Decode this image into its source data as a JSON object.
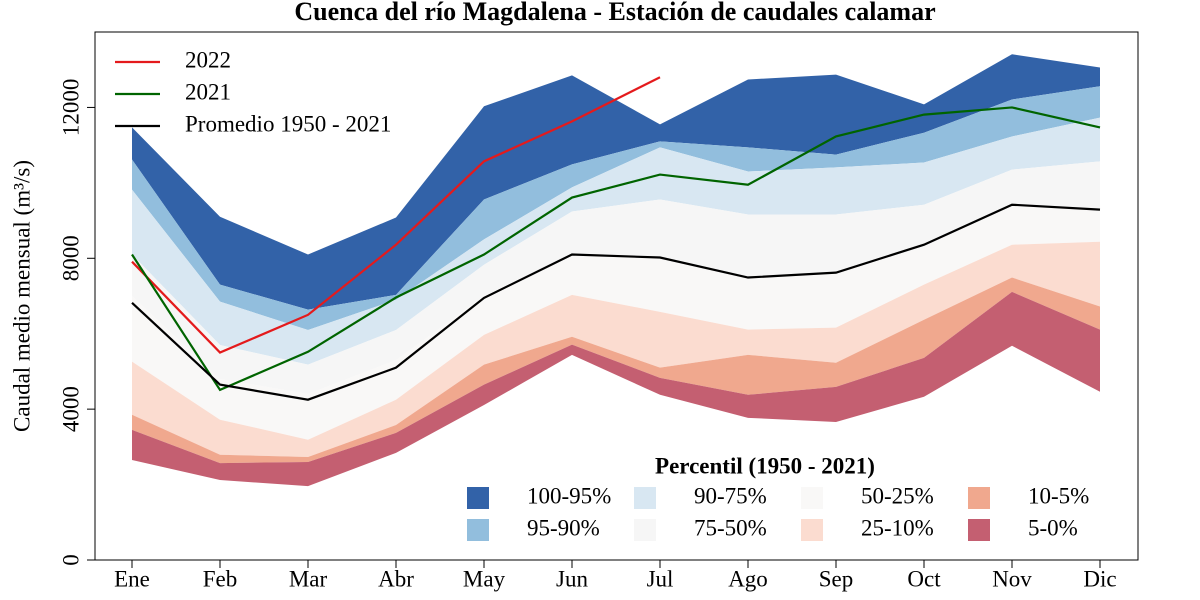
{
  "chart_data": {
    "type": "band",
    "title": "Cuenca del río Magdalena - Estación de caudales calamar",
    "y_label": "Caudal medio mensual (m³/s)",
    "legend_title": "Percentil (1950 - 2021)",
    "categories": [
      "Ene",
      "Feb",
      "Mar",
      "Abr",
      "May",
      "Jun",
      "Jul",
      "Ago",
      "Sep",
      "Oct",
      "Nov",
      "Dic"
    ],
    "ylim": [
      0,
      14000
    ],
    "yticks": [
      0,
      4000,
      8000,
      12000
    ],
    "bands": [
      {
        "name": "100-95%",
        "color": "#3262a8",
        "upper": [
          11470,
          9100,
          8100,
          9080,
          12030,
          12850,
          11550,
          12740,
          12870,
          12080,
          13410,
          13060
        ],
        "lower": [
          10620,
          7300,
          6640,
          7030,
          9560,
          10490,
          11100,
          10940,
          10750,
          11330,
          12210,
          12560
        ]
      },
      {
        "name": "95-90%",
        "color": "#92bedd",
        "upper": [
          10620,
          7300,
          6640,
          7030,
          9560,
          10490,
          11100,
          10940,
          10750,
          11330,
          12210,
          12560
        ],
        "lower": [
          9820,
          6850,
          6100,
          6900,
          8500,
          9880,
          10940,
          10300,
          10410,
          10540,
          11230,
          11730
        ]
      },
      {
        "name": "90-75%",
        "color": "#d8e7f2",
        "upper": [
          9820,
          6850,
          6100,
          6900,
          8500,
          9880,
          10940,
          10300,
          10410,
          10540,
          11230,
          11730
        ],
        "lower": [
          8100,
          5700,
          5180,
          6100,
          7830,
          9240,
          9560,
          9160,
          9160,
          9420,
          10350,
          10570
        ]
      },
      {
        "name": "75-50%",
        "color": "#f6f6f6",
        "upper": [
          8100,
          5700,
          5180,
          6100,
          7830,
          9240,
          9560,
          9160,
          9160,
          9420,
          10350,
          10570
        ],
        "lower": [
          7000,
          4800,
          4400,
          5300,
          7000,
          8100,
          8000,
          7500,
          7600,
          8300,
          9400,
          9300
        ]
      },
      {
        "name": "50-25%",
        "color": "#f9f8f7",
        "upper": [
          7000,
          4800,
          4400,
          5300,
          7000,
          8100,
          8000,
          7500,
          7600,
          8300,
          9400,
          9300
        ],
        "lower": [
          5260,
          3720,
          3190,
          4250,
          5970,
          7030,
          6580,
          6110,
          6160,
          7300,
          8360,
          8440
        ]
      },
      {
        "name": "25-10%",
        "color": "#fbdcd0",
        "upper": [
          5260,
          3720,
          3190,
          4250,
          5970,
          7030,
          6580,
          6110,
          6160,
          7300,
          8360,
          8440
        ],
        "lower": [
          3850,
          2790,
          2730,
          3580,
          5180,
          5920,
          5100,
          5440,
          5230,
          6370,
          7490,
          6720
        ]
      },
      {
        "name": "10-5%",
        "color": "#f0a88e",
        "upper": [
          3850,
          2790,
          2730,
          3580,
          5180,
          5920,
          5100,
          5440,
          5230,
          6370,
          7490,
          6720
        ],
        "lower": [
          3450,
          2570,
          2600,
          3370,
          4650,
          5710,
          4830,
          4380,
          4590,
          5360,
          7110,
          6110
        ]
      },
      {
        "name": "5-0%",
        "color": "#c45f71",
        "upper": [
          3450,
          2570,
          2600,
          3370,
          4650,
          5710,
          4830,
          4380,
          4590,
          5360,
          7110,
          6110
        ],
        "lower": [
          2650,
          2120,
          1960,
          2840,
          4110,
          5440,
          4380,
          3770,
          3660,
          4330,
          5680,
          4460
        ]
      }
    ],
    "series": [
      {
        "name": "2022",
        "color": "#e41a1c",
        "values": [
          7910,
          5500,
          6500,
          8360,
          10570,
          11630,
          12800,
          null,
          null,
          null,
          null,
          null
        ]
      },
      {
        "name": "2021",
        "color": "#006400",
        "values": [
          8100,
          4510,
          5520,
          6960,
          8100,
          9610,
          10220,
          9950,
          11230,
          11810,
          12000,
          11470
        ]
      },
      {
        "name": "Promedio 1950 - 2021",
        "color": "#000000",
        "values": [
          6820,
          4650,
          4250,
          5100,
          6950,
          8100,
          8020,
          7490,
          7620,
          8360,
          9420,
          9290
        ]
      }
    ]
  }
}
